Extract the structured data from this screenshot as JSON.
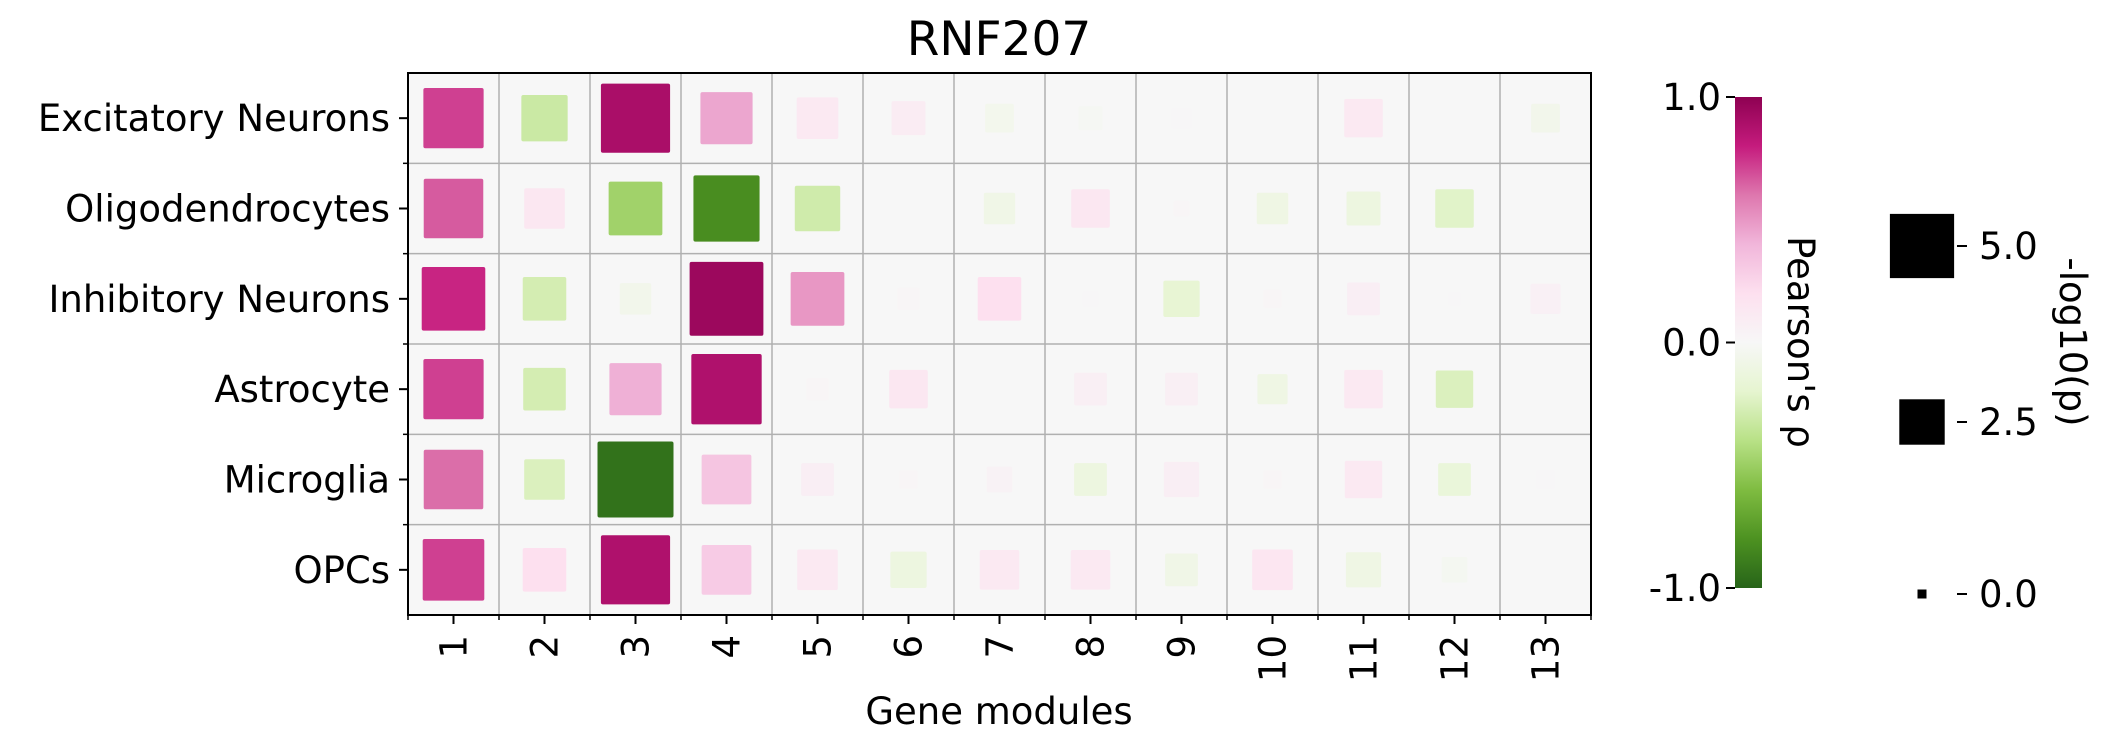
{
  "chart_data": {
    "type": "heatmap",
    "title": "RNF207",
    "xlabel": "Gene modules",
    "ylabel": "",
    "x_categories": [
      "1",
      "2",
      "3",
      "4",
      "5",
      "6",
      "7",
      "8",
      "9",
      "10",
      "11",
      "12",
      "13"
    ],
    "y_categories": [
      "Excitatory Neurons",
      "Oligodendrocytes",
      "Inhibitory Neurons",
      "Astrocyte",
      "Microglia",
      "OPCs"
    ],
    "color_encoding": "Pearson's ρ",
    "size_encoding": "-log10(p)",
    "colorbar": {
      "label": "Pearson's ρ",
      "ticks": [
        "1.0",
        "0.0",
        "-1.0"
      ],
      "range": [
        -1.0,
        1.0
      ],
      "colormap": "PiYG (green = -1, white = 0, magenta = +1)"
    },
    "size_legend": {
      "label": "-log10(p)",
      "entries": [
        {
          "text": "5.0",
          "value": 5.0
        },
        {
          "text": "2.5",
          "value": 2.5
        },
        {
          "text": "0.0",
          "value": 0.0
        }
      ]
    },
    "rho": [
      [
        0.72,
        -0.32,
        0.9,
        0.45,
        0.12,
        0.1,
        -0.05,
        -0.02,
        0.01,
        0.0,
        0.12,
        0.0,
        -0.06
      ],
      [
        0.66,
        0.14,
        -0.48,
        -0.82,
        -0.3,
        0.0,
        -0.08,
        0.14,
        0.02,
        -0.1,
        -0.12,
        -0.22,
        0.0
      ],
      [
        0.78,
        -0.28,
        -0.06,
        0.95,
        0.5,
        0.02,
        0.2,
        0.01,
        -0.18,
        0.02,
        0.08,
        0.01,
        0.06
      ],
      [
        0.72,
        -0.28,
        0.42,
        0.88,
        0.02,
        0.14,
        0.0,
        0.07,
        0.07,
        -0.1,
        0.12,
        -0.25,
        0.0
      ],
      [
        0.62,
        -0.25,
        -0.94,
        0.33,
        0.08,
        0.02,
        0.04,
        -0.12,
        0.08,
        0.02,
        0.12,
        -0.15,
        0.01
      ],
      [
        0.72,
        0.2,
        0.88,
        0.3,
        0.12,
        -0.12,
        0.12,
        0.12,
        -0.08,
        0.15,
        -0.1,
        -0.03,
        0.0
      ]
    ],
    "neg_log10_p": [
      [
        4.4,
        2.6,
        5.8,
        3.3,
        2.1,
        1.4,
        1.0,
        0.7,
        0.5,
        0.0,
        1.8,
        0.0,
        1.0
      ],
      [
        4.3,
        2.0,
        3.5,
        5.3,
        2.5,
        0.0,
        1.2,
        1.8,
        0.3,
        1.2,
        1.4,
        1.8,
        0.0
      ],
      [
        4.9,
        2.3,
        1.2,
        6.6,
        3.5,
        0.6,
        2.3,
        0.3,
        1.6,
        0.4,
        1.3,
        0.2,
        1.1
      ],
      [
        4.4,
        2.2,
        3.3,
        6.0,
        0.6,
        1.8,
        0.0,
        1.3,
        1.3,
        1.1,
        1.8,
        1.7,
        0.0
      ],
      [
        4.3,
        2.0,
        7.0,
        3.0,
        1.3,
        0.4,
        0.8,
        1.3,
        1.5,
        0.4,
        1.7,
        1.3,
        0.4
      ],
      [
        4.6,
        2.3,
        5.8,
        3.0,
        2.0,
        1.6,
        1.9,
        1.9,
        1.3,
        2.0,
        1.5,
        0.8,
        0.2
      ]
    ],
    "grid": true,
    "legend_position": "right"
  }
}
